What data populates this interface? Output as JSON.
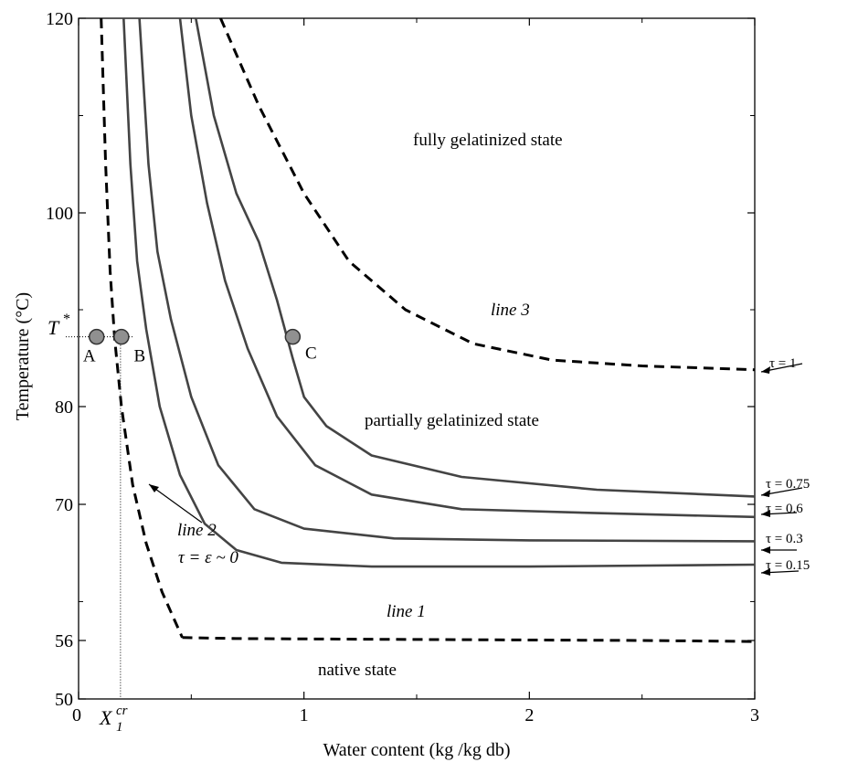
{
  "chart_data": {
    "type": "line",
    "title": "",
    "xlabel": "Water content (kg /kg db)",
    "ylabel": "Temperature (°C)",
    "xlim": [
      0,
      3
    ],
    "ylim": [
      50,
      120
    ],
    "x_ticks": [
      "0",
      "1",
      "2",
      "3"
    ],
    "y_ticks": [
      "50",
      "56",
      "70",
      "80",
      "100",
      "120"
    ],
    "grid": false,
    "series": [
      {
        "name": "line 1",
        "style": "dashed",
        "points": [
          [
            0.46,
            56.3
          ],
          [
            0.7,
            56.2
          ],
          [
            1.5,
            56.1
          ],
          [
            2.5,
            56.0
          ],
          [
            3.0,
            55.9
          ]
        ]
      },
      {
        "name": "line 2",
        "style": "dashed",
        "points": [
          [
            0.1,
            120
          ],
          [
            0.12,
            105
          ],
          [
            0.14,
            94
          ],
          [
            0.16,
            87
          ],
          [
            0.19,
            80
          ],
          [
            0.24,
            72
          ],
          [
            0.3,
            66
          ],
          [
            0.37,
            61
          ],
          [
            0.46,
            56.3
          ]
        ]
      },
      {
        "name": "τ = 0.15",
        "style": "solid",
        "points": [
          [
            0.2,
            120
          ],
          [
            0.23,
            105
          ],
          [
            0.26,
            95
          ],
          [
            0.3,
            88
          ],
          [
            0.36,
            80
          ],
          [
            0.45,
            73
          ],
          [
            0.56,
            68
          ],
          [
            0.7,
            65.3
          ],
          [
            0.9,
            64
          ],
          [
            1.3,
            63.6
          ],
          [
            2.0,
            63.6
          ],
          [
            3.0,
            63.8
          ]
        ]
      },
      {
        "name": "τ = 0.3",
        "style": "solid",
        "points": [
          [
            0.27,
            120
          ],
          [
            0.31,
            105
          ],
          [
            0.35,
            96
          ],
          [
            0.41,
            89
          ],
          [
            0.5,
            81
          ],
          [
            0.62,
            74
          ],
          [
            0.78,
            69.5
          ],
          [
            1.0,
            67.5
          ],
          [
            1.4,
            66.5
          ],
          [
            2.0,
            66.3
          ],
          [
            3.0,
            66.2
          ]
        ]
      },
      {
        "name": "τ = 0.6",
        "style": "solid",
        "points": [
          [
            0.45,
            120
          ],
          [
            0.5,
            110
          ],
          [
            0.57,
            101
          ],
          [
            0.65,
            93
          ],
          [
            0.75,
            86
          ],
          [
            0.88,
            79
          ],
          [
            1.05,
            74
          ],
          [
            1.3,
            71
          ],
          [
            1.7,
            69.5
          ],
          [
            2.3,
            69.1
          ],
          [
            3.0,
            68.7
          ]
        ]
      },
      {
        "name": "τ = 0.75",
        "style": "solid",
        "points": [
          [
            0.52,
            120
          ],
          [
            0.6,
            110
          ],
          [
            0.7,
            102
          ],
          [
            0.8,
            97
          ],
          [
            0.88,
            91
          ],
          [
            0.95,
            85
          ],
          [
            1.0,
            81
          ],
          [
            1.1,
            78
          ],
          [
            1.3,
            75
          ],
          [
            1.7,
            72.8
          ],
          [
            2.3,
            71.5
          ],
          [
            3.0,
            70.8
          ]
        ]
      },
      {
        "name": "line 3",
        "style": "dashed",
        "points": [
          [
            0.63,
            120
          ],
          [
            0.8,
            111
          ],
          [
            1.0,
            102
          ],
          [
            1.2,
            95
          ],
          [
            1.45,
            90
          ],
          [
            1.75,
            86.5
          ],
          [
            2.1,
            84.8
          ],
          [
            2.5,
            84.2
          ],
          [
            3.0,
            83.8
          ]
        ]
      }
    ],
    "points_marked": [
      {
        "label": "A",
        "x": 0.08,
        "y": 87.2
      },
      {
        "label": "B",
        "x": 0.19,
        "y": 87.2
      },
      {
        "label": "C",
        "x": 0.95,
        "y": 87.2
      }
    ],
    "annotations": {
      "region_full": "fully gelatinized state",
      "region_partial": "partially gelatinized state",
      "region_native": "native state",
      "line1": "line 1",
      "line2": "line 2",
      "line3": "line 3",
      "tau_eps": "τ = ε ~ 0",
      "tau_1": "τ = 1",
      "tau_075": "τ = 0.75",
      "tau_06": "τ = 0.6",
      "tau_03": "τ = 0.3",
      "tau_015": "τ = 0.15",
      "t_star": "T",
      "t_star_sup": "*",
      "x1cr_main": "X",
      "x1cr_sup": "cr",
      "x1cr_sub": "1"
    }
  }
}
